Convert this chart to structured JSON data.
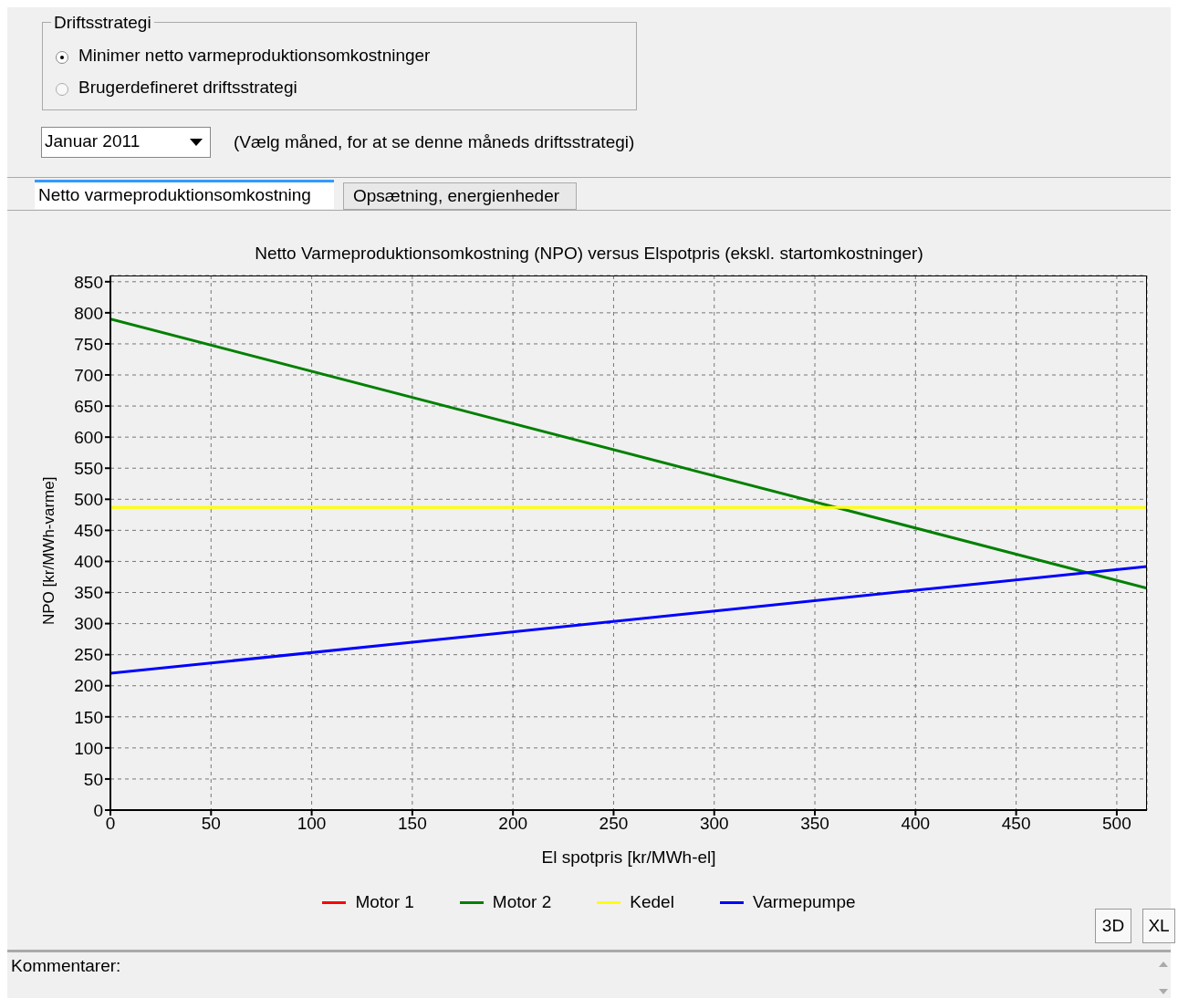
{
  "chart_data": {
    "type": "line",
    "title": "Netto Varmeproduktionsomkostning (NPO) versus Elspotpris (ekskl. startomkostninger)",
    "xlabel": "El spotpris [kr/MWh-el]",
    "ylabel": "NPO [kr/MWh-varme]",
    "x": [
      0,
      515
    ],
    "series": [
      {
        "name": "Motor 1",
        "color": "#ff0000",
        "values": [
          null,
          null
        ]
      },
      {
        "name": "Motor 2",
        "color": "#008000",
        "values": [
          790,
          357
        ]
      },
      {
        "name": "Kedel",
        "color": "#ffff00",
        "values": [
          487,
          487
        ]
      },
      {
        "name": "Varmepumpe",
        "color": "#0000ff",
        "values": [
          220,
          392
        ]
      }
    ],
    "xlim": [
      0,
      515
    ],
    "xticks": [
      0,
      50,
      100,
      150,
      200,
      250,
      300,
      350,
      400,
      450,
      500
    ],
    "ylim": [
      0,
      860
    ],
    "yticks": [
      0,
      50,
      100,
      150,
      200,
      250,
      300,
      350,
      400,
      450,
      500,
      550,
      600,
      650,
      700,
      750,
      800,
      850
    ],
    "grid": true,
    "legend": "bottom",
    "marker": "none",
    "line_style": "solid",
    "annotations": [
      "Driftsstrategi",
      "Minimer netto varmeproduktionsomkostninger",
      "Brugerdefineret driftsstrategi",
      "Januar 2011",
      "(Vælg måned, for at se denne måneds driftsstrategi)",
      "Netto varmeproduktionsomkostning",
      "Opsætning, energienheder",
      "3D",
      "XL",
      "Kommentarer:"
    ]
  }
}
